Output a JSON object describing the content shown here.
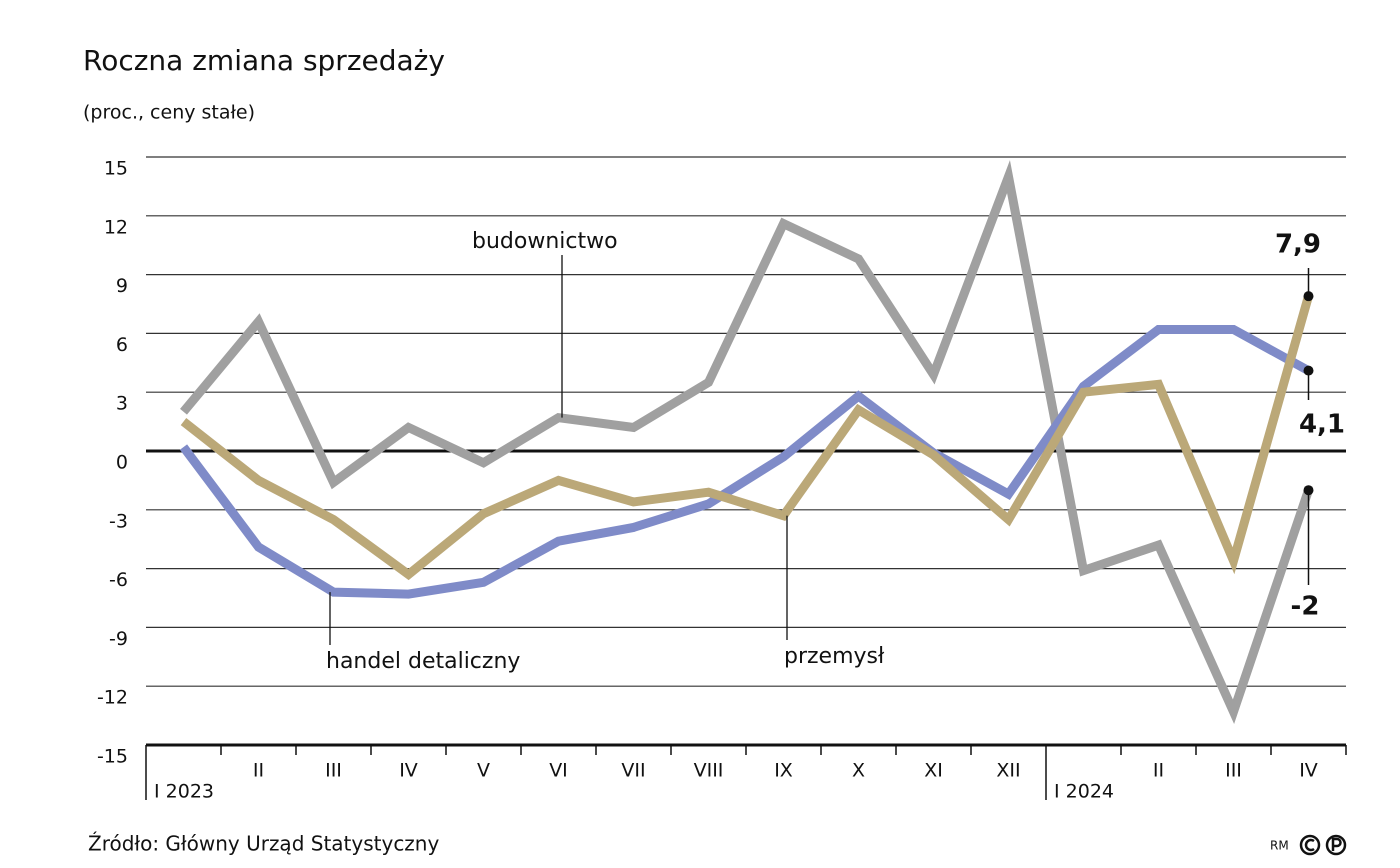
{
  "chart_data": {
    "type": "line",
    "title": "Roczna zmiana sprzedaży",
    "subtitle": "(proc., ceny stałe)",
    "source": "Źródło: Główny Urząd Statystyczny",
    "credit": "RM",
    "categories": [
      "I 2023",
      "II",
      "III",
      "IV",
      "V",
      "VI",
      "VII",
      "VIII",
      "IX",
      "X",
      "XI",
      "XII",
      "I 2024",
      "II",
      "III",
      "IV"
    ],
    "series": [
      {
        "name": "budownictwo",
        "color": "#a0a0a0",
        "values": [
          2.0,
          6.6,
          -1.6,
          1.2,
          -0.6,
          1.7,
          1.2,
          3.5,
          11.6,
          9.8,
          3.9,
          14.0,
          -6.1,
          -4.8,
          -13.3,
          -2
        ],
        "value_labels": [
          null,
          null,
          null,
          null,
          null,
          null,
          null,
          null,
          null,
          null,
          null,
          null,
          null,
          null,
          null,
          "-2"
        ]
      },
      {
        "name": "handel detaliczny",
        "color": "#7f8bc8",
        "values": [
          0.2,
          -4.9,
          -7.2,
          -7.3,
          -6.7,
          -4.6,
          -3.9,
          -2.7,
          -0.3,
          2.8,
          -0.1,
          -2.2,
          3.3,
          6.2,
          6.2,
          4.1
        ],
        "value_labels": [
          null,
          null,
          null,
          null,
          null,
          null,
          null,
          null,
          null,
          null,
          null,
          null,
          null,
          null,
          null,
          "4,1"
        ]
      },
      {
        "name": "przemysł",
        "color": "#bba878",
        "values": [
          1.5,
          -1.5,
          -3.5,
          -6.3,
          -3.2,
          -1.5,
          -2.6,
          -2.1,
          -3.3,
          2.1,
          -0.2,
          -3.5,
          3.0,
          3.4,
          -5.6,
          7.9
        ],
        "value_labels": [
          null,
          null,
          null,
          null,
          null,
          null,
          null,
          null,
          null,
          null,
          null,
          null,
          null,
          null,
          null,
          "7,9"
        ]
      }
    ],
    "ylim": [
      -15,
      15
    ],
    "yticks": [
      15,
      12,
      9,
      6,
      3,
      0,
      -3,
      -6,
      -9,
      -12,
      -15
    ],
    "grid": true
  }
}
